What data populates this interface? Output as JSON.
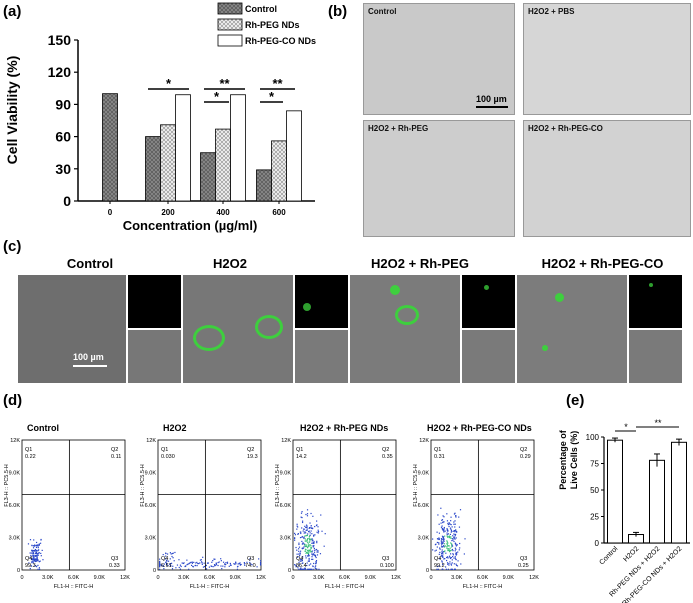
{
  "panels": {
    "a": "(a)",
    "b": "(b)",
    "c": "(c)",
    "d": "(d)",
    "e": "(e)"
  },
  "panel_a": {
    "ylabel": "Cell Viability (%)",
    "xlabel": "Concentration (µg/ml)",
    "sig_200": "*",
    "sig_400_top": "**",
    "sig_400_low": "*",
    "sig_600_top": "**",
    "sig_600_low": "*"
  },
  "panel_b": {
    "labels": [
      "Control",
      "H2O2 + PBS",
      "H2O2 + Rh-PEG",
      "H2O2 + Rh-PEG-CO"
    ],
    "scale": "100 µm"
  },
  "panel_c": {
    "labels": [
      "Control",
      "H2O2",
      "H2O2 + Rh-PEG",
      "H2O2 + Rh-PEG-CO"
    ],
    "scale": "100 µm"
  },
  "panel_d": {
    "titles": [
      "Control",
      "H2O2",
      "H2O2 + Rh-PEG NDs",
      "H2O2 + Rh-PEG-CO NDs"
    ],
    "xlabel": "FL1-H :: FITC-H",
    "ylabel": "FL3-H :: PC5.5-H",
    "xticks": [
      "0",
      "3.0K",
      "6.0K",
      "9.0K",
      "12K"
    ],
    "yticks": [
      "0",
      "3.0K",
      "6.0K",
      "9.0K",
      "12K"
    ],
    "quadrants": [
      {
        "Q1": "0.22",
        "Q2": "0.11",
        "Q3": "0.33",
        "Q4": "99.3"
      },
      {
        "Q1": "0.030",
        "Q2": "19.3",
        "Q3": "74.0",
        "Q4": "6.61"
      },
      {
        "Q1": "14.2",
        "Q2": "0.35",
        "Q3": "0.100",
        "Q4": "85.4"
      },
      {
        "Q1": "0.31",
        "Q2": "0.29",
        "Q3": "0.25",
        "Q4": "99.2"
      }
    ]
  },
  "panel_e": {
    "sig1": "*",
    "sig2": "**"
  },
  "chart_data": [
    {
      "type": "bar",
      "categories": [
        "0",
        "200",
        "400",
        "600"
      ],
      "series": [
        {
          "name": "Control",
          "values": [
            100,
            60,
            45,
            29
          ]
        },
        {
          "name": "Rh-PEG NDs",
          "values": [
            null,
            71,
            67,
            56
          ]
        },
        {
          "name": "Rh-PEG-CO NDs",
          "values": [
            null,
            99,
            99,
            84
          ]
        }
      ],
      "xlabel": "Concentration (µg/ml)",
      "ylabel": "Cell Viability (%)",
      "ylim": [
        0,
        150
      ],
      "yticks": [
        0,
        30,
        60,
        90,
        120,
        150
      ],
      "legend": "top-right",
      "colors": {
        "Control": "#7f7f7f",
        "Rh-PEG NDs": "#d9d9d9",
        "Rh-PEG-CO NDs": "#ffffff"
      }
    },
    {
      "type": "bar",
      "categories": [
        "Control",
        "H2O2",
        "Rh-PEG NDs + H2O2",
        "Rh-PEG-CO NDs + H2O2"
      ],
      "values": [
        97,
        8,
        78,
        95
      ],
      "errors": [
        2,
        2,
        6,
        3
      ],
      "ylabel": "Percentage of Live Cells (%)",
      "ylim": [
        0,
        100
      ],
      "yticks": [
        0,
        25,
        50,
        75,
        100
      ]
    }
  ]
}
